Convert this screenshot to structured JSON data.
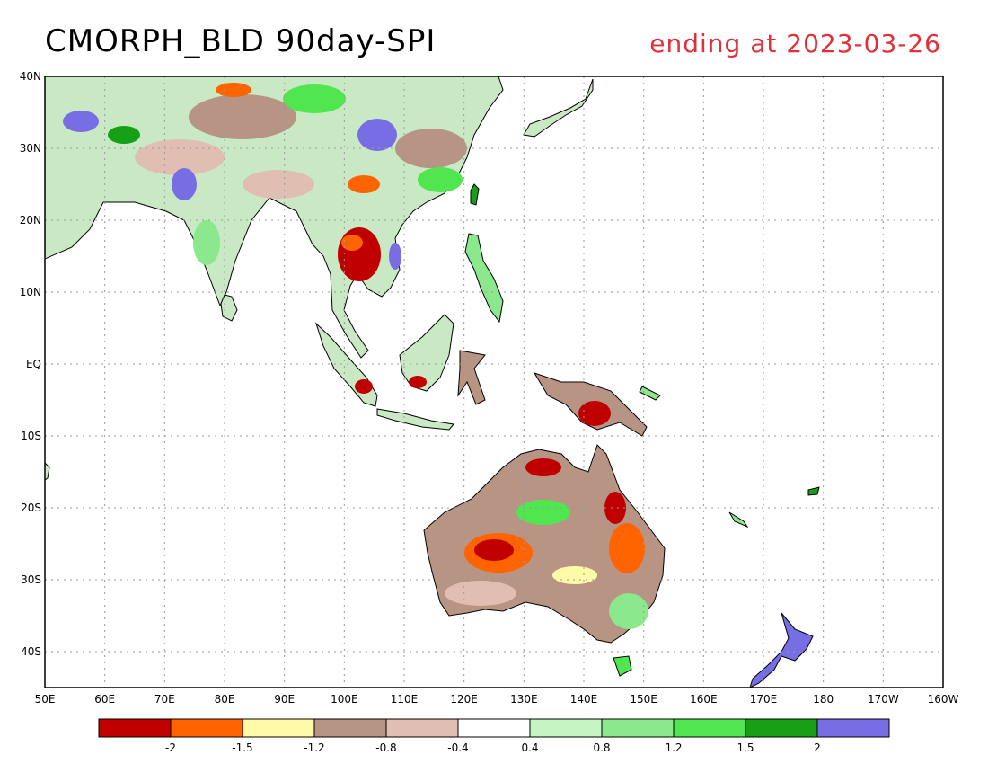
{
  "title": "CMORPH_BLD 90day-SPI",
  "subtitle": "ending at 2023-03-26",
  "colors": {
    "title": "#000000",
    "subtitle": "#e0303a",
    "coast": "#000000",
    "grid": "#9a9a9a"
  },
  "map": {
    "lon_range": [
      50,
      200
    ],
    "lat_range": [
      -45,
      40
    ],
    "lon_ticks": [
      {
        "value": 50,
        "label": "50E"
      },
      {
        "value": 60,
        "label": "60E"
      },
      {
        "value": 70,
        "label": "70E"
      },
      {
        "value": 80,
        "label": "80E"
      },
      {
        "value": 90,
        "label": "90E"
      },
      {
        "value": 100,
        "label": "100E"
      },
      {
        "value": 110,
        "label": "110E"
      },
      {
        "value": 120,
        "label": "120E"
      },
      {
        "value": 130,
        "label": "130E"
      },
      {
        "value": 140,
        "label": "140E"
      },
      {
        "value": 150,
        "label": "150E"
      },
      {
        "value": 160,
        "label": "160E"
      },
      {
        "value": 170,
        "label": "170E"
      },
      {
        "value": 180,
        "label": "180"
      },
      {
        "value": 190,
        "label": "170W"
      },
      {
        "value": 200,
        "label": "160W"
      }
    ],
    "lat_ticks": [
      {
        "value": 40,
        "label": "40N"
      },
      {
        "value": 30,
        "label": "30N"
      },
      {
        "value": 20,
        "label": "20N"
      },
      {
        "value": 10,
        "label": "10N"
      },
      {
        "value": 0,
        "label": "EQ"
      },
      {
        "value": -10,
        "label": "10S"
      },
      {
        "value": -20,
        "label": "20S"
      },
      {
        "value": -30,
        "label": "30S"
      },
      {
        "value": -40,
        "label": "40S"
      }
    ],
    "grid": true
  },
  "legend": {
    "colors": [
      "#c00000",
      "#ff6400",
      "#fffaa8",
      "#b89484",
      "#e0beb2",
      "#ffffff",
      "#c4f5c2",
      "#8ce88c",
      "#50e650",
      "#16a016",
      "#786ee4"
    ],
    "labels": [
      "-2",
      "-1.5",
      "-1.2",
      "-0.8",
      "-0.4",
      "0.4",
      "0.8",
      "1.2",
      "1.5",
      "2"
    ]
  }
}
